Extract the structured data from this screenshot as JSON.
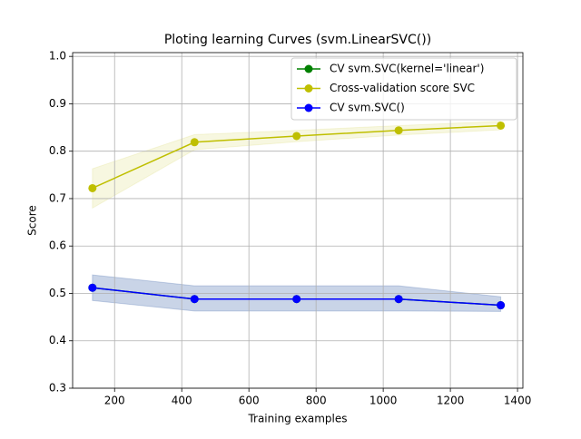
{
  "chart_data": {
    "type": "line",
    "title": "Ploting learning Curves (svm.LinearSVC())",
    "x_label": "Training examples",
    "y_label": "Score",
    "x": [
      134,
      438,
      742,
      1046,
      1350
    ],
    "series": [
      {
        "name": "CV svm.SVC(kernel='linear')",
        "color": "#008000",
        "values": [
          0.512,
          0.488,
          0.488,
          0.488,
          0.475
        ]
      },
      {
        "name": "Cross-validation score SVC",
        "color": "#bfbf00",
        "values": [
          0.722,
          0.819,
          0.832,
          0.844,
          0.854
        ],
        "lower": [
          0.68,
          0.803,
          0.82,
          0.834,
          0.845
        ],
        "upper": [
          0.763,
          0.835,
          0.844,
          0.854,
          0.863
        ],
        "band_color": "#bfbf00",
        "band_opacity": 0.12
      },
      {
        "name": "CV svm.SVC()",
        "color": "#0000ff",
        "values": [
          0.512,
          0.488,
          0.488,
          0.488,
          0.475
        ],
        "lower": [
          0.485,
          0.463,
          0.463,
          0.463,
          0.462
        ],
        "upper": [
          0.539,
          0.516,
          0.516,
          0.516,
          0.493
        ],
        "band_color": "#4c72b0",
        "band_opacity": 0.3
      }
    ],
    "xlim": [
      75,
      1416
    ],
    "xticks": [
      200,
      400,
      600,
      800,
      1000,
      1200,
      1400
    ],
    "ylim": [
      0.3,
      1.008
    ],
    "yticks": [
      0.3,
      0.4,
      0.5,
      0.6,
      0.7,
      0.8,
      0.9,
      {
        "value": 1,
        "label": "1.0"
      }
    ],
    "grid": true,
    "legend": "upper right"
  }
}
